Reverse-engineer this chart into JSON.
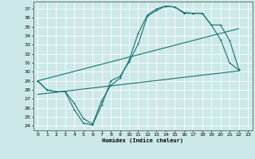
{
  "xlabel": "Humidex (Indice chaleur)",
  "bg_color": "#cce8e8",
  "grid_color": "#ffffff",
  "line_color": "#1a7070",
  "xlim": [
    -0.5,
    23.5
  ],
  "ylim": [
    23.5,
    37.8
  ],
  "xticks": [
    0,
    1,
    2,
    3,
    4,
    5,
    6,
    7,
    8,
    9,
    10,
    11,
    12,
    13,
    14,
    15,
    16,
    17,
    18,
    19,
    20,
    21,
    22,
    23
  ],
  "yticks": [
    24,
    25,
    26,
    27,
    28,
    29,
    30,
    31,
    32,
    33,
    34,
    35,
    36,
    37
  ],
  "curve1_x": [
    0,
    1,
    2,
    3,
    4,
    5,
    6,
    7,
    8,
    9,
    10,
    11,
    12,
    13,
    14,
    15,
    16,
    17,
    18,
    19,
    20,
    21,
    22
  ],
  "curve1_y": [
    29,
    28,
    27.8,
    27.8,
    25.8,
    24.3,
    24.1,
    26.3,
    29,
    29.5,
    31.1,
    33.1,
    36.2,
    36.8,
    37.3,
    37.2,
    36.5,
    36.5,
    36.5,
    35.2,
    33.6,
    31,
    30.2
  ],
  "curve2_x": [
    0,
    1,
    2,
    3,
    4,
    5,
    6,
    7,
    8,
    9,
    10,
    11,
    12,
    13,
    14,
    15,
    16,
    17,
    18,
    19,
    20,
    21,
    22
  ],
  "curve2_y": [
    29,
    28,
    27.8,
    27.8,
    26.5,
    24.8,
    24.2,
    26.8,
    28.5,
    29.3,
    31.3,
    34.3,
    36.3,
    37,
    37.3,
    37.2,
    36.6,
    36.5,
    36.5,
    35.2,
    35.2,
    33.5,
    30.3
  ],
  "line3_x": [
    0,
    22
  ],
  "line3_y": [
    27.5,
    30.1
  ],
  "line4_x": [
    0,
    22
  ],
  "line4_y": [
    29.0,
    34.8
  ]
}
